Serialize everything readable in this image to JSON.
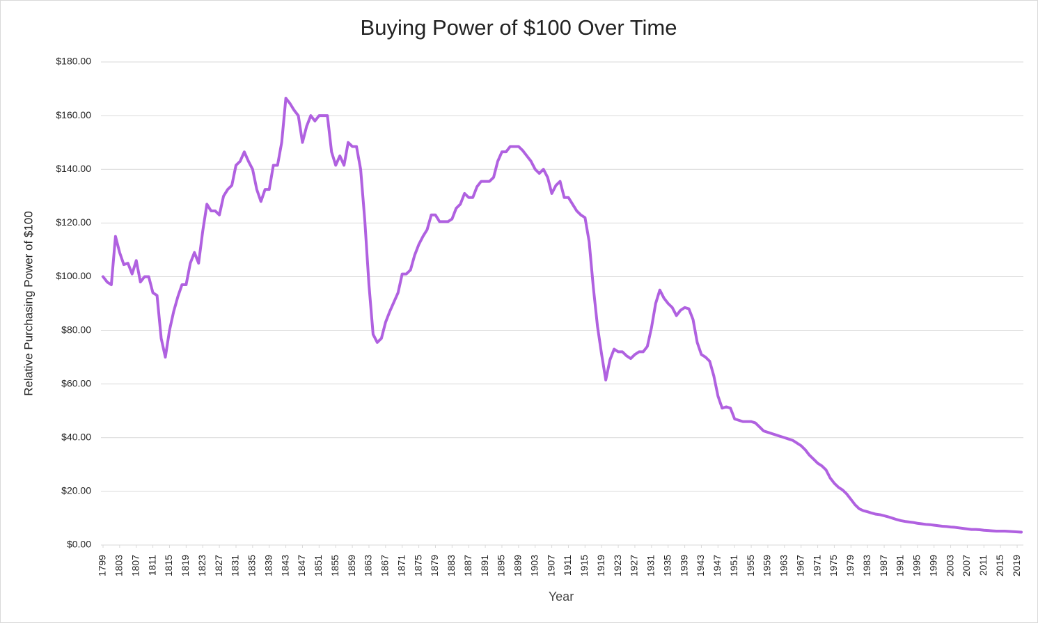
{
  "chart_data": {
    "type": "line",
    "title": "Buying Power of $100 Over Time",
    "x_label": "Year",
    "y_label": "Relative Purchasing Power of $100",
    "x": [
      1799,
      1800,
      1801,
      1802,
      1803,
      1804,
      1805,
      1806,
      1807,
      1808,
      1809,
      1810,
      1811,
      1812,
      1813,
      1814,
      1815,
      1816,
      1817,
      1818,
      1819,
      1820,
      1821,
      1822,
      1823,
      1824,
      1825,
      1826,
      1827,
      1828,
      1829,
      1830,
      1831,
      1832,
      1833,
      1834,
      1835,
      1836,
      1837,
      1838,
      1839,
      1840,
      1841,
      1842,
      1843,
      1844,
      1845,
      1846,
      1847,
      1848,
      1849,
      1850,
      1851,
      1852,
      1853,
      1854,
      1855,
      1856,
      1857,
      1858,
      1859,
      1860,
      1861,
      1862,
      1863,
      1864,
      1865,
      1866,
      1867,
      1868,
      1869,
      1870,
      1871,
      1872,
      1873,
      1874,
      1875,
      1876,
      1877,
      1878,
      1879,
      1880,
      1881,
      1882,
      1883,
      1884,
      1885,
      1886,
      1887,
      1888,
      1889,
      1890,
      1891,
      1892,
      1893,
      1894,
      1895,
      1896,
      1897,
      1898,
      1899,
      1900,
      1901,
      1902,
      1903,
      1904,
      1905,
      1906,
      1907,
      1908,
      1909,
      1910,
      1911,
      1912,
      1913,
      1914,
      1915,
      1916,
      1917,
      1918,
      1919,
      1920,
      1921,
      1922,
      1923,
      1924,
      1925,
      1926,
      1927,
      1928,
      1929,
      1930,
      1931,
      1932,
      1933,
      1934,
      1935,
      1936,
      1937,
      1938,
      1939,
      1940,
      1941,
      1942,
      1943,
      1944,
      1945,
      1946,
      1947,
      1948,
      1949,
      1950,
      1951,
      1952,
      1953,
      1954,
      1955,
      1956,
      1957,
      1958,
      1959,
      1960,
      1961,
      1962,
      1963,
      1964,
      1965,
      1966,
      1967,
      1968,
      1969,
      1970,
      1971,
      1972,
      1973,
      1974,
      1975,
      1976,
      1977,
      1978,
      1979,
      1980,
      1981,
      1982,
      1983,
      1984,
      1985,
      1986,
      1987,
      1988,
      1989,
      1990,
      1991,
      1992,
      1993,
      1994,
      1995,
      1996,
      1997,
      1998,
      1999,
      2000,
      2001,
      2002,
      2003,
      2004,
      2005,
      2006,
      2007,
      2008,
      2009,
      2010,
      2011,
      2012,
      2013,
      2014,
      2015,
      2016,
      2017,
      2018,
      2019,
      2020
    ],
    "series": [
      {
        "name": "Relative Purchasing Power of $100",
        "color": "#b061e0",
        "values": [
          100,
          98,
          97,
          115,
          109,
          104.5,
          105,
          101,
          106,
          98,
          100,
          100,
          94,
          93,
          77,
          70,
          80,
          87,
          92.5,
          97,
          97,
          105,
          109,
          105,
          117,
          127,
          124.5,
          124.5,
          123,
          130,
          132.5,
          134,
          141.5,
          143,
          146.5,
          143,
          140,
          132.5,
          128,
          132.5,
          132.5,
          141.5,
          141.5,
          150,
          166.5,
          164.5,
          162,
          160,
          150,
          156,
          160,
          158,
          160,
          160,
          160,
          146.5,
          141.5,
          145,
          141.5,
          150,
          148.5,
          148.5,
          140,
          121,
          97,
          78.5,
          75.5,
          77,
          83,
          87,
          90.5,
          94,
          101,
          101,
          102.5,
          108,
          112,
          115,
          117.5,
          123,
          123,
          120.5,
          120.5,
          120.5,
          121.5,
          125.5,
          127,
          131,
          129.5,
          129.5,
          133.5,
          135.5,
          135.5,
          135.5,
          137,
          143,
          146.5,
          146.5,
          148.5,
          148.5,
          148.5,
          147,
          145,
          143,
          140,
          138.5,
          140,
          137,
          131,
          134,
          135.5,
          129.5,
          129.5,
          127,
          124.5,
          123,
          122,
          113,
          96,
          81.5,
          71,
          61.5,
          69,
          73,
          72,
          72,
          70.5,
          69.5,
          71,
          72,
          72,
          74,
          81,
          90,
          95,
          92,
          90,
          88.5,
          85.5,
          87.5,
          88.5,
          88,
          84,
          75.5,
          71,
          70,
          68.5,
          63,
          55.5,
          51,
          51.5,
          51,
          47,
          46.5,
          46,
          46,
          46,
          45.5,
          44,
          42.5,
          42,
          41.5,
          41,
          40.5,
          40,
          39.5,
          39,
          38,
          37,
          35.5,
          33.5,
          32,
          30.5,
          29.5,
          28,
          25,
          23,
          21.5,
          20.5,
          19,
          17,
          15,
          13.5,
          12.8,
          12.4,
          11.9,
          11.5,
          11.3,
          10.9,
          10.5,
          10,
          9.5,
          9.1,
          8.8,
          8.6,
          8.4,
          8.1,
          7.9,
          7.7,
          7.6,
          7.4,
          7.2,
          7,
          6.9,
          6.7,
          6.6,
          6.4,
          6.2,
          6,
          5.8,
          5.8,
          5.7,
          5.5,
          5.4,
          5.3,
          5.2,
          5.2,
          5.2,
          5.1,
          5,
          4.9,
          4.8
        ]
      }
    ],
    "xlim": [
      1798.5,
      2020.5
    ],
    "xticks": [
      1799,
      1803,
      1807,
      1811,
      1815,
      1819,
      1823,
      1827,
      1831,
      1835,
      1839,
      1843,
      1847,
      1851,
      1855,
      1859,
      1863,
      1867,
      1871,
      1875,
      1879,
      1883,
      1887,
      1891,
      1895,
      1899,
      1903,
      1907,
      1911,
      1915,
      1919,
      1923,
      1927,
      1931,
      1935,
      1939,
      1943,
      1947,
      1951,
      1955,
      1959,
      1963,
      1967,
      1971,
      1975,
      1979,
      1983,
      1987,
      1991,
      1995,
      1999,
      2003,
      2007,
      2011,
      2015,
      2019
    ],
    "ylim": [
      0,
      180
    ],
    "yticks": [
      {
        "value": 0,
        "label": "$0.00"
      },
      {
        "value": 20,
        "label": "$20.00"
      },
      {
        "value": 40,
        "label": "$40.00"
      },
      {
        "value": 60,
        "label": "$60.00"
      },
      {
        "value": 80,
        "label": "$80.00"
      },
      {
        "value": 100,
        "label": "$100.00"
      },
      {
        "value": 120,
        "label": "$120.00"
      },
      {
        "value": 140,
        "label": "$140.00"
      },
      {
        "value": 160,
        "label": "$160.00"
      },
      {
        "value": 180,
        "label": "$180.00"
      }
    ],
    "grid": true
  }
}
